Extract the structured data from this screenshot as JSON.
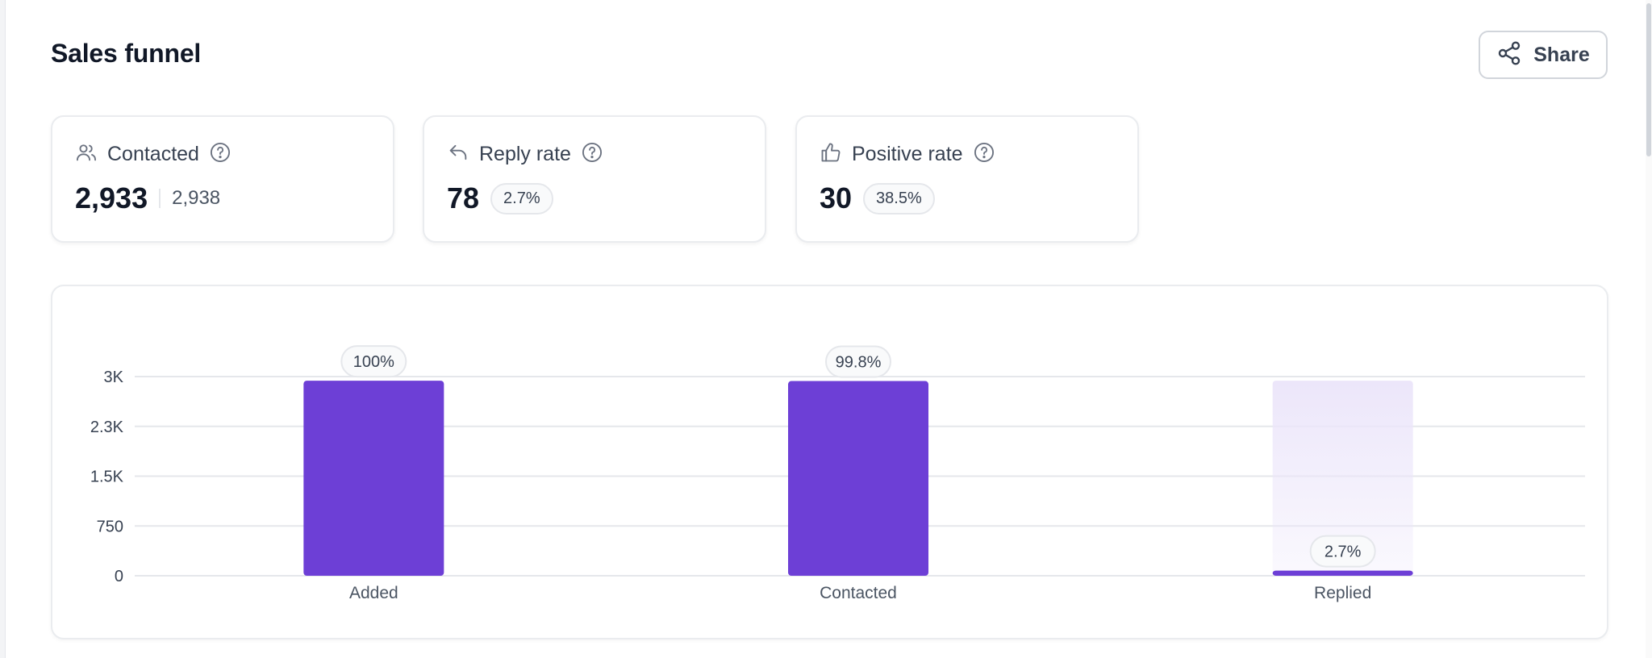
{
  "header": {
    "title": "Sales funnel",
    "share_label": "Share"
  },
  "stats": [
    {
      "label": "Contacted",
      "icon": "users-icon",
      "value": "2,933",
      "secondary": "2,938"
    },
    {
      "label": "Reply rate",
      "icon": "reply-icon",
      "value": "78",
      "badge": "2.7%"
    },
    {
      "label": "Positive rate",
      "icon": "thumbs-up-icon",
      "value": "30",
      "badge": "38.5%"
    }
  ],
  "colors": {
    "bar": "#6d3fd6",
    "bar_ghost": "#ece6fa",
    "grid": "#e5e7eb"
  },
  "chart_data": {
    "type": "bar",
    "categories": [
      "Added",
      "Contacted",
      "Replied"
    ],
    "values": [
      2938,
      2933,
      78
    ],
    "labels": [
      "100%",
      "99.8%",
      "2.7%"
    ],
    "ghost_values": [
      null,
      null,
      2938
    ],
    "yticks": [
      0,
      750,
      1500,
      2250,
      3000
    ],
    "ytick_labels": [
      "0",
      "750",
      "1.5K",
      "2.3K",
      "3K"
    ],
    "ylim": [
      0,
      3000
    ],
    "grid": true
  }
}
